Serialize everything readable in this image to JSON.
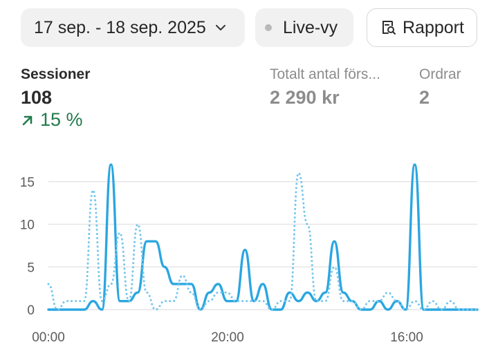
{
  "toolbar": {
    "date_range": "17 sep. - 18 sep. 2025",
    "live_label": "Live-vy",
    "report_label": "Rapport"
  },
  "metrics": {
    "sessions": {
      "label": "Sessioner",
      "value": "108",
      "change": "15 %"
    },
    "total_sales": {
      "label": "Totalt antal förs...",
      "value": "2 290 kr"
    },
    "orders": {
      "label": "Ordrar",
      "value": "2"
    }
  },
  "colors": {
    "accent": "#2aa6e0",
    "positive": "#217a4b",
    "muted": "#8c8c8c"
  },
  "chart_data": {
    "type": "line",
    "xlabel": "",
    "ylabel": "",
    "ylim": [
      0,
      17
    ],
    "y_ticks": [
      0,
      5,
      10,
      15
    ],
    "x_tick_labels": [
      {
        "label": "00:00",
        "x": 0
      },
      {
        "label": "20:00",
        "x": 20
      },
      {
        "label": "16:00",
        "x": 40
      }
    ],
    "grid": true,
    "series": [
      {
        "style": "solid",
        "x": [
          0,
          1,
          2,
          3,
          4,
          5,
          6,
          7,
          8,
          9,
          10,
          11,
          12,
          13,
          14,
          15,
          16,
          17,
          18,
          19,
          20,
          21,
          22,
          23,
          24,
          25,
          26,
          27,
          28,
          29,
          30,
          31,
          32,
          33,
          34,
          35,
          36,
          37,
          38,
          39,
          40,
          41,
          42,
          43,
          44,
          45,
          46,
          47,
          48
        ],
        "values": [
          0,
          0,
          0,
          0,
          0,
          1,
          0,
          17,
          1,
          1,
          2,
          8,
          8,
          5,
          3,
          3,
          3,
          0,
          2,
          3,
          1,
          1,
          7,
          1,
          3,
          0,
          0,
          2,
          1,
          2,
          1,
          2,
          8,
          2,
          1,
          0,
          0,
          1,
          0,
          1,
          0,
          17,
          0,
          0,
          0,
          0,
          0,
          0,
          0
        ]
      },
      {
        "style": "dotted",
        "x": [
          0,
          1,
          2,
          3,
          4,
          5,
          6,
          7,
          8,
          9,
          10,
          11,
          12,
          13,
          14,
          15,
          16,
          17,
          18,
          19,
          20,
          21,
          22,
          23,
          24,
          25,
          26,
          27,
          28,
          29,
          30,
          31,
          32,
          33,
          34,
          35,
          36,
          37,
          38,
          39,
          40,
          41,
          42,
          43,
          44,
          45,
          46,
          47,
          48
        ],
        "values": [
          3,
          0,
          1,
          1,
          1,
          14,
          1,
          3,
          9,
          1,
          10,
          2,
          0,
          1,
          1,
          4,
          2,
          0,
          1,
          2,
          2,
          1,
          1,
          1,
          1,
          0,
          1,
          1,
          16,
          10,
          1,
          1,
          5,
          1,
          1,
          0,
          1,
          1,
          2,
          1,
          0,
          1,
          0,
          1,
          0,
          1,
          0,
          0,
          0
        ]
      }
    ]
  }
}
